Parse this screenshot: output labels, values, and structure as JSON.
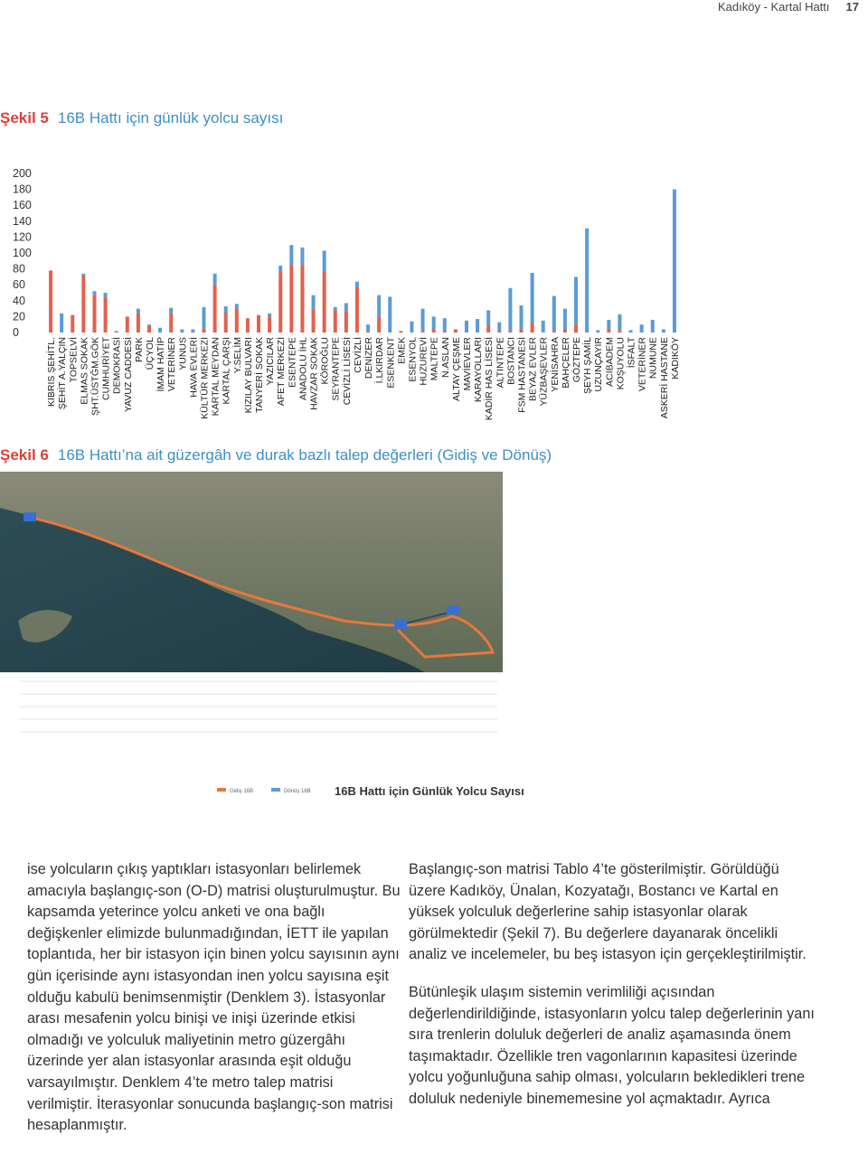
{
  "header": {
    "title": "Kadıköy - Kartal Hattı",
    "page": 17
  },
  "figure5": {
    "label": "Şekil 5",
    "caption": "16B Hattı için günlük yolcu sayısı"
  },
  "chart_data": {
    "type": "stacked-bar",
    "categories": [
      "KIBRIS ŞEHİTL.",
      "ŞEHİT A.YALÇIN",
      "TOPSELVİ",
      "ELMAS SOKAK",
      "ŞHT.ÜSTĞM.GÖK",
      "CUMHURİYET",
      "DEMOKRASİ",
      "YAVUZ CADDESİ",
      "PARK",
      "ÜÇYOL",
      "İMAM HATİP",
      "VETERİNER",
      "YUNUS",
      "HAVA EVLERİ",
      "KÜLTÜR MERKEZİ",
      "KARTAL MEYDAN",
      "KARTAL ÇARŞI",
      "Y.SELİM",
      "KIZILAY BULVARI",
      "TANYERİ SOKAK",
      "YAZICILAR",
      "AFET MERKEZİ",
      "ESENTEPE",
      "ANADOLU İHL",
      "HAVZAR SOKAK",
      "KÖROĞLU",
      "SEYRANTEPE",
      "CEVİZLİ LİSESİ",
      "CEVİZLİ",
      "DENİZER",
      "İ.LKIRDAR",
      "ESENKENT",
      "EMEK",
      "ESENYOL",
      "HUZUREVİ",
      "MALTEPE",
      "N.ASLAN",
      "ALTAY ÇEŞME",
      "MAVİEVLER",
      "KARAYOLLARI",
      "KADİR HAS LİSESİ",
      "ALTINTEPE",
      "BOSTANCI",
      "FSM HASTANESİ",
      "BEYAZ EVLER",
      "YÜZBAŞEVLER",
      "YENİSAHRA",
      "BAHÇELER",
      "GÖZTEPE",
      "ŞEYH ŞAMİL",
      "UZUNÇAYIR",
      "ACIBADEM",
      "KOŞUYOLU",
      "İSFALT",
      "VETERİNER",
      "NUMUNE",
      "ASKERİ HASTANE",
      "KADIKÖY"
    ],
    "series": [
      {
        "color": "#e4604e",
        "values": [
          78,
          0,
          22,
          72,
          47,
          45,
          0,
          20,
          24,
          8,
          0,
          24,
          0,
          0,
          5,
          60,
          25,
          30,
          18,
          22,
          20,
          76,
          85,
          85,
          30,
          77,
          28,
          27,
          57,
          2,
          20,
          0,
          2,
          0,
          2,
          4,
          2,
          4,
          0,
          0,
          8,
          2,
          2,
          4,
          12,
          0,
          2,
          4,
          10,
          0,
          0,
          5,
          3,
          0,
          0,
          0,
          0,
          0
        ]
      },
      {
        "color": "#5b9bd5",
        "values": [
          0,
          24,
          0,
          2,
          5,
          5,
          2,
          0,
          6,
          2,
          6,
          7,
          4,
          4,
          27,
          14,
          8,
          6,
          0,
          0,
          4,
          8,
          25,
          22,
          17,
          26,
          4,
          10,
          7,
          8,
          27,
          45,
          0,
          14,
          28,
          16,
          16,
          0,
          15,
          17,
          20,
          11,
          54,
          30,
          63,
          15,
          44,
          26,
          60,
          131,
          3,
          11,
          20,
          3,
          10,
          16,
          4,
          180
        ]
      }
    ],
    "ylim": [
      0,
      200
    ],
    "yticks": [
      0,
      20,
      40,
      60,
      80,
      100,
      120,
      140,
      160,
      180,
      200
    ]
  },
  "figure6": {
    "label": "Şekil 6",
    "caption": "16B Hattı’na ait güzergâh ve durak bazlı talep değerleri (Gidiş ve Dönüş)",
    "inset_title": "16B Hattı için Günlük Yolcu Sayısı",
    "legend": [
      "Gidiş 16B",
      "Dönüş 16B"
    ]
  },
  "text": {
    "left": "ise yolcuların çıkış yaptıkları istasyonları belirlemek amacıyla başlangıç-son (O-D) matrisi oluşturulmuştur. Bu kapsamda yeterince yolcu anketi ve ona bağlı değişkenler elimizde bulunmadığından, İETT ile yapılan toplantıda, her bir istasyon için binen yolcu sayısının aynı gün içerisinde aynı istasyondan inen yolcu sayısına eşit olduğu kabulü benimsenmiştir (Denklem 3). İstasyonlar arası mesafenin yolcu binişi ve inişi üzerinde etkisi olmadığı ve yolculuk maliyetinin metro güzergâhı üzerinde yer alan istasyonlar arasında eşit olduğu varsayılmıştır. Denklem 4’te metro talep matrisi verilmiştir. İterasyonlar sonucunda başlangıç-son matrisi hesaplanmıştır.",
    "right": [
      "Başlangıç-son matrisi Tablo 4’te gösterilmiştir. Görüldüğü üzere Kadıköy, Ünalan, Kozyatağı, Bostancı ve Kartal en yüksek yolculuk değerlerine sahip istasyonlar olarak görülmektedir (Şekil 7). Bu değerlere dayanarak öncelikli analiz ve incelemeler, bu beş istasyon için gerçekleştirilmiştir.",
      "Bütünleşik ulaşım sistemin verimliliği açısından değerlendirildiğinde, istasyonların yolcu talep değerlerinin yanı sıra trenlerin doluluk değerleri de analiz aşamasında önem taşımaktadır. Özellikle tren vagonlarının kapasitesi üzerinde yolcu yoğunluğuna sahip olması, yolcuların bekledikleri trene doluluk nedeniyle binememesine yol açmaktadır. Ayrıca"
    ]
  }
}
